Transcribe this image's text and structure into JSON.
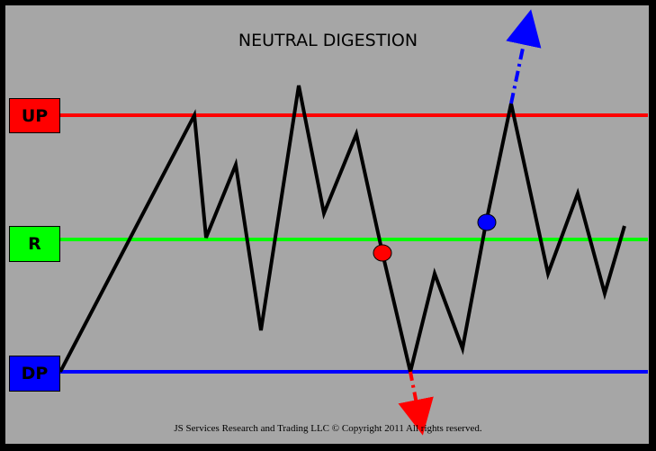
{
  "title": "NEUTRAL DIGESTION",
  "footer": "JS Services Research and Trading LLC © Copyright 2011 All rights reserved.",
  "levels": [
    {
      "key": "up",
      "label": "UP",
      "line_color": "#ff0000",
      "box_color": "#ff0000"
    },
    {
      "key": "r",
      "label": "R",
      "line_color": "#00ff00",
      "box_color": "#00ff00"
    },
    {
      "key": "dp",
      "label": "DP",
      "line_color": "#0000ff",
      "box_color": "#0000ff"
    }
  ],
  "colors": {
    "background": "#a6a6a6",
    "price_path": "#000000",
    "breakdown": "#ff0000",
    "breakout": "#0000ff"
  },
  "markers": [
    {
      "name": "breakdown-marker",
      "color": "#ff0000"
    },
    {
      "name": "breakout-marker",
      "color": "#0000ff"
    }
  ],
  "arrows": [
    {
      "name": "breakdown-arrow",
      "direction": "down",
      "style": "dash-dot",
      "color": "#ff0000"
    },
    {
      "name": "breakout-arrow",
      "direction": "up",
      "style": "dash-dot",
      "color": "#0000ff"
    }
  ]
}
